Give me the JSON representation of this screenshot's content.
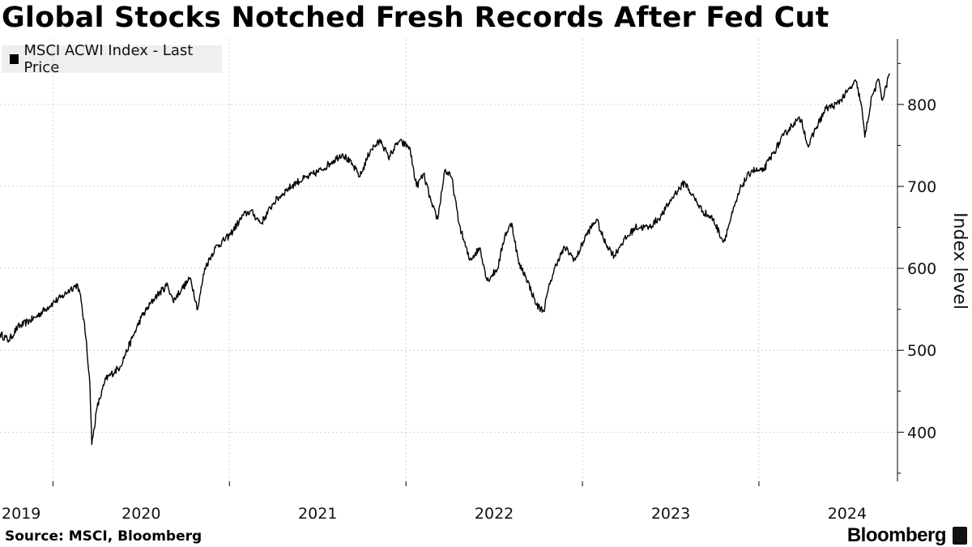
{
  "title": "Global Stocks Notched Fresh Records After Fed Cut",
  "legend_label": "MSCI ACWI Index - Last Price",
  "source": "Source: MSCI, Bloomberg",
  "brand": "Bloomberg",
  "colors": {
    "line": "#000000",
    "grid": "#cfcfcf",
    "legend_bg": "#efefef"
  },
  "chart_data": {
    "type": "line",
    "title": "Global Stocks Notched Fresh Records After Fed Cut",
    "ylabel": "Index level",
    "xlabel": "",
    "ylim": [
      340,
      880
    ],
    "y_ticks": [
      400,
      500,
      600,
      700,
      800
    ],
    "x_ticks": [
      "2019",
      "2020",
      "2021",
      "2022",
      "2023",
      "2024"
    ],
    "x_range": [
      "2019-09",
      "2024-10"
    ],
    "series": [
      {
        "name": "MSCI ACWI Index - Last Price",
        "points": [
          [
            2019.7,
            520
          ],
          [
            2019.75,
            512
          ],
          [
            2019.8,
            528
          ],
          [
            2019.9,
            540
          ],
          [
            2020.0,
            558
          ],
          [
            2020.05,
            565
          ],
          [
            2020.1,
            575
          ],
          [
            2020.14,
            580
          ],
          [
            2020.16,
            560
          ],
          [
            2020.19,
            510
          ],
          [
            2020.21,
            455
          ],
          [
            2020.22,
            385
          ],
          [
            2020.25,
            430
          ],
          [
            2020.3,
            465
          ],
          [
            2020.38,
            480
          ],
          [
            2020.45,
            515
          ],
          [
            2020.5,
            540
          ],
          [
            2020.58,
            565
          ],
          [
            2020.65,
            580
          ],
          [
            2020.68,
            560
          ],
          [
            2020.73,
            575
          ],
          [
            2020.78,
            588
          ],
          [
            2020.82,
            550
          ],
          [
            2020.86,
            600
          ],
          [
            2020.92,
            625
          ],
          [
            2021.0,
            640
          ],
          [
            2021.08,
            665
          ],
          [
            2021.12,
            670
          ],
          [
            2021.18,
            655
          ],
          [
            2021.25,
            680
          ],
          [
            2021.32,
            695
          ],
          [
            2021.38,
            705
          ],
          [
            2021.45,
            712
          ],
          [
            2021.52,
            720
          ],
          [
            2021.58,
            730
          ],
          [
            2021.64,
            740
          ],
          [
            2021.7,
            725
          ],
          [
            2021.74,
            712
          ],
          [
            2021.8,
            745
          ],
          [
            2021.86,
            756
          ],
          [
            2021.9,
            735
          ],
          [
            2021.96,
            755
          ],
          [
            2022.02,
            748
          ],
          [
            2022.06,
            700
          ],
          [
            2022.1,
            715
          ],
          [
            2022.15,
            675
          ],
          [
            2022.18,
            660
          ],
          [
            2022.22,
            720
          ],
          [
            2022.26,
            710
          ],
          [
            2022.3,
            655
          ],
          [
            2022.36,
            610
          ],
          [
            2022.42,
            625
          ],
          [
            2022.46,
            585
          ],
          [
            2022.52,
            600
          ],
          [
            2022.56,
            640
          ],
          [
            2022.6,
            655
          ],
          [
            2022.64,
            605
          ],
          [
            2022.68,
            590
          ],
          [
            2022.74,
            555
          ],
          [
            2022.78,
            548
          ],
          [
            2022.82,
            585
          ],
          [
            2022.86,
            610
          ],
          [
            2022.9,
            625
          ],
          [
            2022.96,
            610
          ],
          [
            2023.02,
            640
          ],
          [
            2023.08,
            660
          ],
          [
            2023.12,
            635
          ],
          [
            2023.18,
            615
          ],
          [
            2023.22,
            630
          ],
          [
            2023.3,
            650
          ],
          [
            2023.38,
            650
          ],
          [
            2023.45,
            665
          ],
          [
            2023.52,
            690
          ],
          [
            2023.58,
            705
          ],
          [
            2023.62,
            690
          ],
          [
            2023.68,
            670
          ],
          [
            2023.74,
            660
          ],
          [
            2023.8,
            632
          ],
          [
            2023.84,
            660
          ],
          [
            2023.9,
            700
          ],
          [
            2023.96,
            720
          ],
          [
            2024.02,
            718
          ],
          [
            2024.08,
            740
          ],
          [
            2024.14,
            762
          ],
          [
            2024.2,
            778
          ],
          [
            2024.24,
            782
          ],
          [
            2024.28,
            748
          ],
          [
            2024.32,
            770
          ],
          [
            2024.38,
            795
          ],
          [
            2024.44,
            800
          ],
          [
            2024.5,
            815
          ],
          [
            2024.55,
            828
          ],
          [
            2024.58,
            800
          ],
          [
            2024.6,
            760
          ],
          [
            2024.64,
            810
          ],
          [
            2024.68,
            830
          ],
          [
            2024.7,
            805
          ],
          [
            2024.74,
            838
          ]
        ]
      }
    ]
  }
}
